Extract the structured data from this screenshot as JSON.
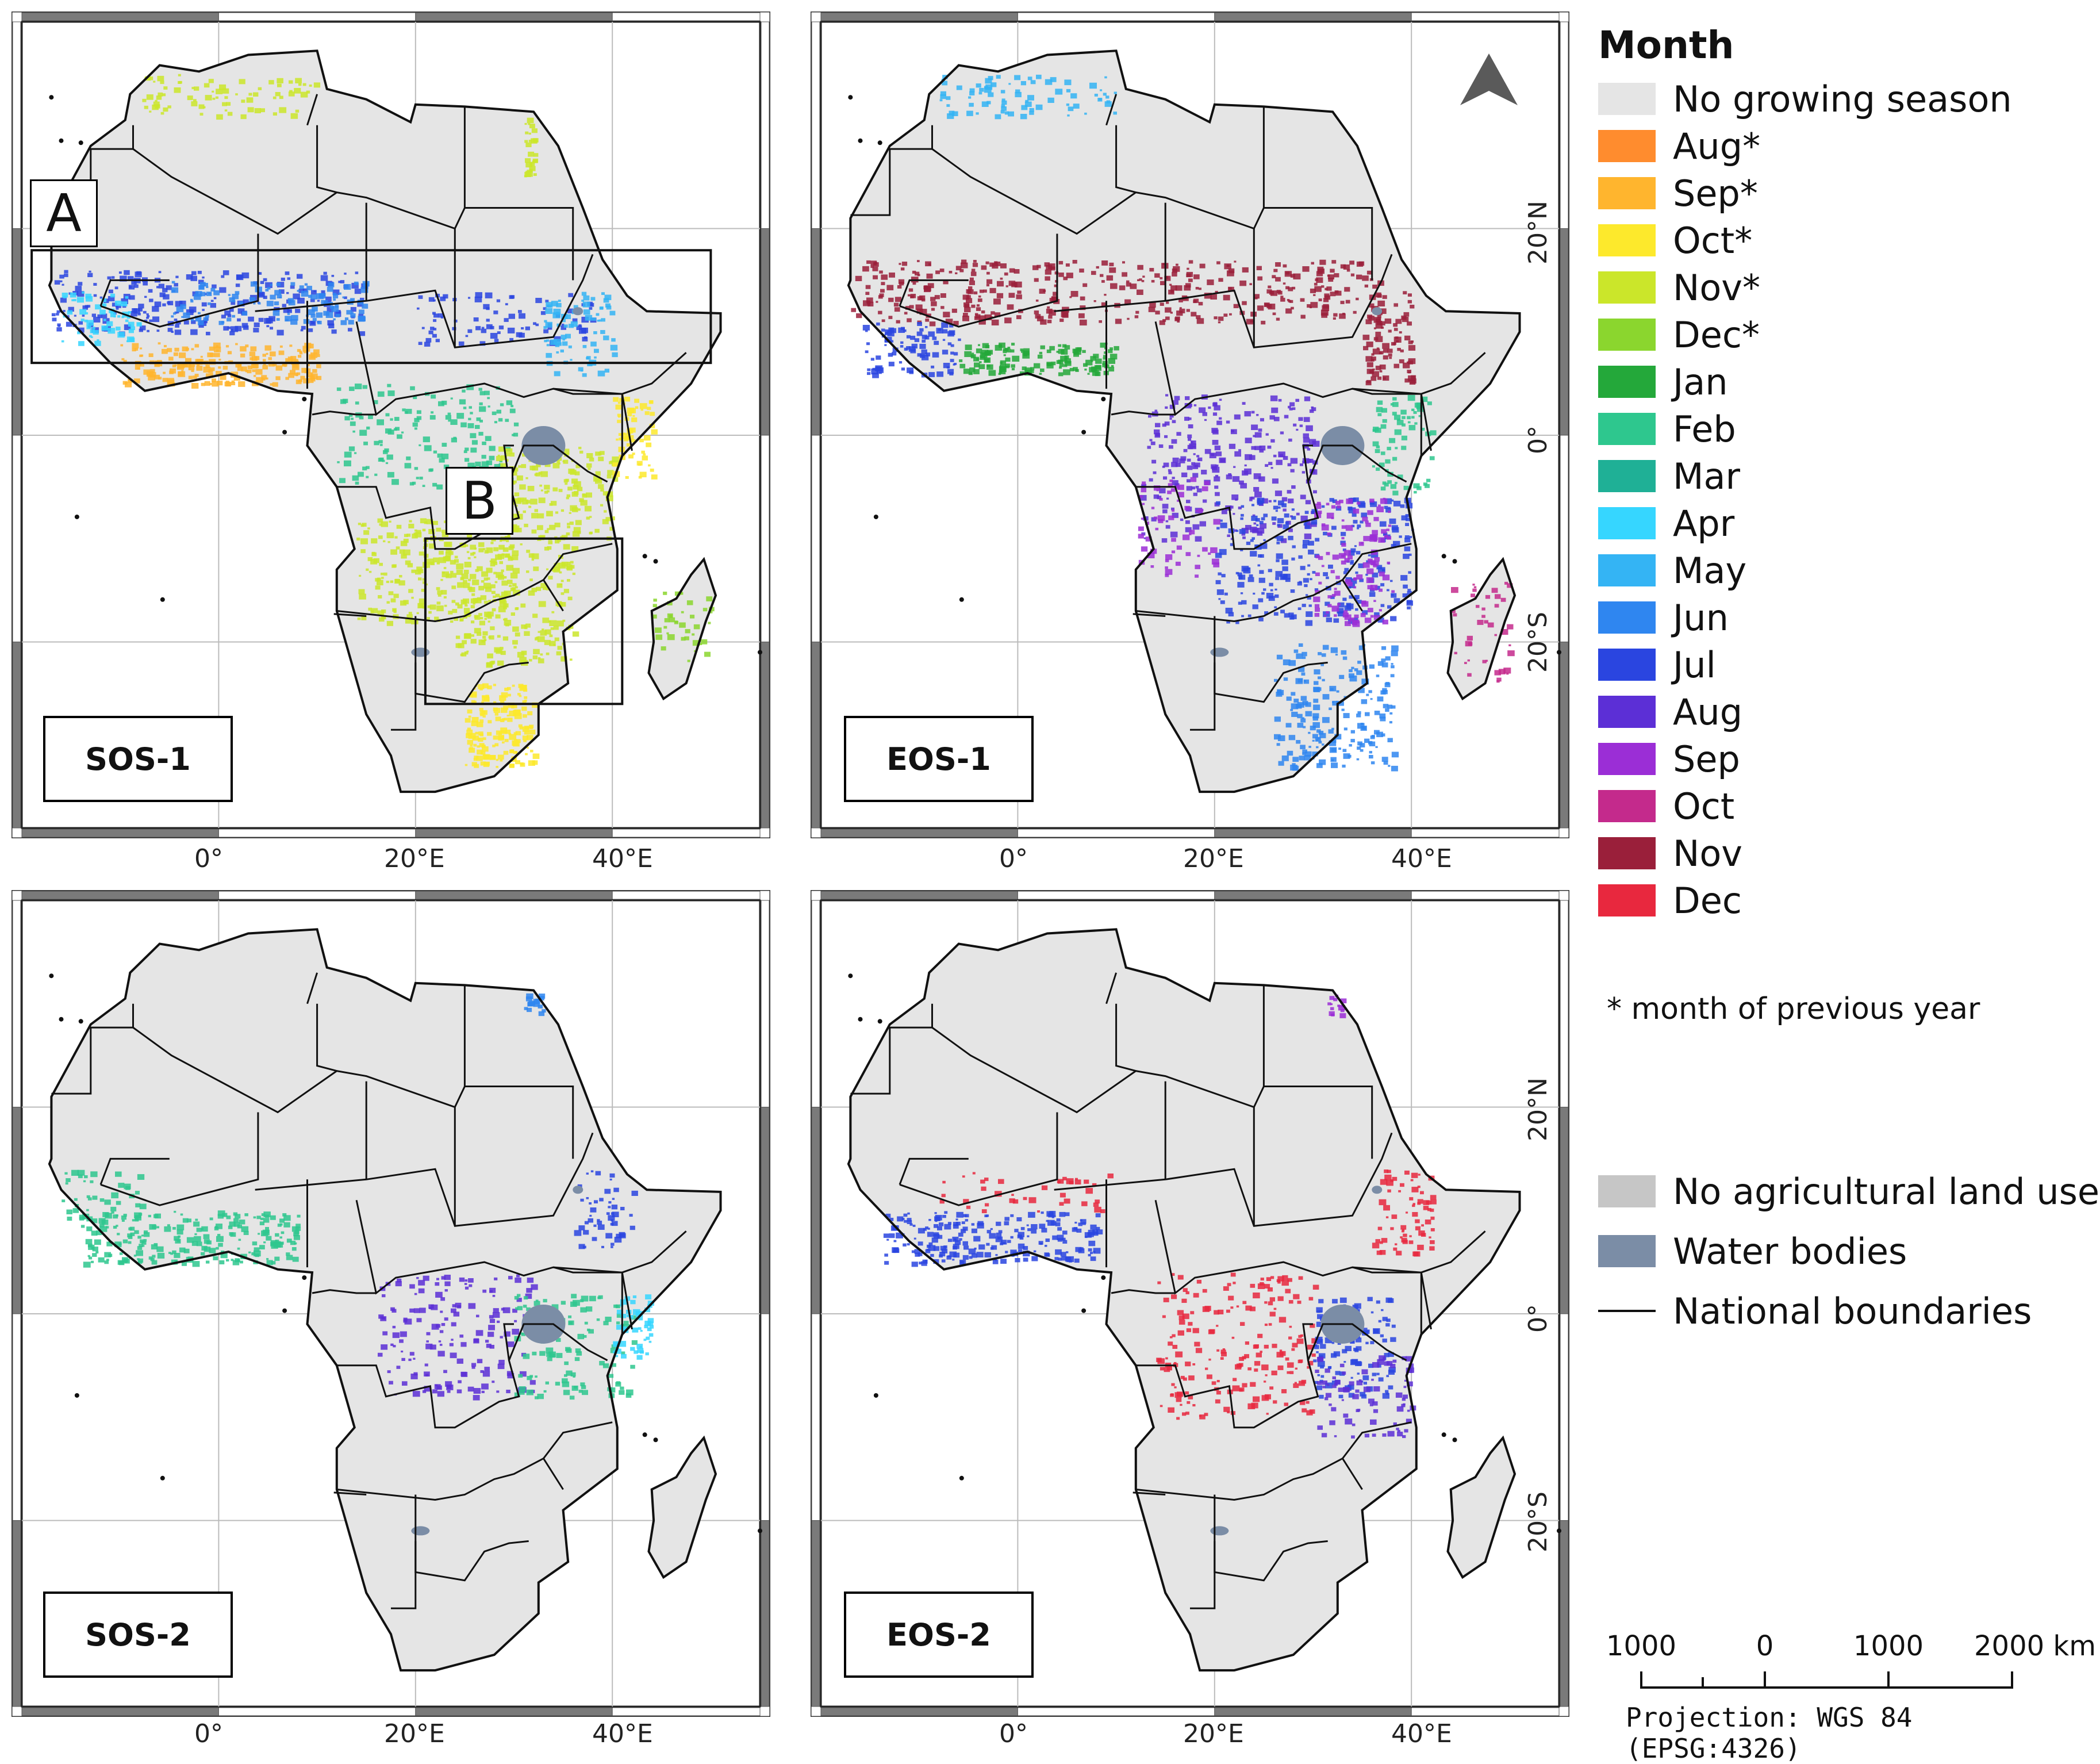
{
  "panels": [
    {
      "id": "sos1",
      "label": "SOS-1"
    },
    {
      "id": "eos1",
      "label": "EOS-1"
    },
    {
      "id": "sos2",
      "label": "SOS-2"
    },
    {
      "id": "eos2",
      "label": "EOS-2"
    }
  ],
  "boxes": {
    "a": "A",
    "b": "B"
  },
  "axis_labels": {
    "lon": [
      "0°",
      "20°E",
      "40°E"
    ],
    "lat": [
      "20°N",
      "0°",
      "20°S"
    ]
  },
  "legend": {
    "title": "Month",
    "items": [
      {
        "label": "No growing season",
        "color": "#e5e5e5"
      },
      {
        "label": "Aug*",
        "color": "#ff8c2e"
      },
      {
        "label": "Sep*",
        "color": "#ffb52e"
      },
      {
        "label": "Oct*",
        "color": "#fde92c"
      },
      {
        "label": "Nov*",
        "color": "#cbe62a"
      },
      {
        "label": "Dec*",
        "color": "#8bd62e"
      },
      {
        "label": "Jan",
        "color": "#24a83a"
      },
      {
        "label": "Feb",
        "color": "#2ec78e"
      },
      {
        "label": "Mar",
        "color": "#1fb096"
      },
      {
        "label": "Apr",
        "color": "#36d6ff"
      },
      {
        "label": "May",
        "color": "#34b4f4"
      },
      {
        "label": "Jun",
        "color": "#2f86f0"
      },
      {
        "label": "Jul",
        "color": "#2a45e0"
      },
      {
        "label": "Aug",
        "color": "#5c2fd6"
      },
      {
        "label": "Sep",
        "color": "#9b2ed6"
      },
      {
        "label": "Oct",
        "color": "#c42a8c"
      },
      {
        "label": "Nov",
        "color": "#9a1f3a"
      },
      {
        "label": "Dec",
        "color": "#e8283e"
      }
    ],
    "footnote": "* month of previous year",
    "extra": [
      {
        "label": "No agricultural land use",
        "color": "#c6c6c6"
      },
      {
        "label": "Water bodies",
        "color": "#7b8da6"
      },
      {
        "label": "National boundaries",
        "type": "line"
      }
    ]
  },
  "scalebar": {
    "labels": [
      "1000",
      "0",
      "1000",
      "2000 km"
    ]
  },
  "projection": "Projection: WGS 84 (EPSG:4326)",
  "map_bounds": {
    "lon": [
      -20,
      55
    ],
    "lat": [
      -38,
      40
    ]
  },
  "graticule": {
    "lon": [
      0,
      20,
      40
    ],
    "lat": [
      -20,
      0,
      20
    ]
  },
  "africa_outline_lonlat": [
    [
      -17,
      15
    ],
    [
      -17,
      21
    ],
    [
      -13,
      28
    ],
    [
      -9.5,
      30.5
    ],
    [
      -9,
      33
    ],
    [
      -6,
      35.8
    ],
    [
      -2,
      35.2
    ],
    [
      3,
      36.8
    ],
    [
      10,
      37.2
    ],
    [
      11,
      33.5
    ],
    [
      15,
      32.5
    ],
    [
      19.5,
      30.3
    ],
    [
      20,
      32
    ],
    [
      25,
      31.8
    ],
    [
      32,
      31.3
    ],
    [
      34.5,
      28
    ],
    [
      37,
      22
    ],
    [
      39,
      17
    ],
    [
      41.5,
      13.5
    ],
    [
      43.5,
      12
    ],
    [
      51,
      11.8
    ],
    [
      51,
      10
    ],
    [
      48,
      5
    ],
    [
      44,
      1
    ],
    [
      41,
      -2
    ],
    [
      39.5,
      -6
    ],
    [
      40.5,
      -11
    ],
    [
      40.5,
      -15
    ],
    [
      35,
      -19
    ],
    [
      35.5,
      -24
    ],
    [
      32.5,
      -26
    ],
    [
      32.5,
      -29
    ],
    [
      28,
      -33
    ],
    [
      22,
      -34.5
    ],
    [
      18.5,
      -34.5
    ],
    [
      17.5,
      -31
    ],
    [
      15,
      -27
    ],
    [
      12,
      -17
    ],
    [
      12,
      -13
    ],
    [
      13.8,
      -11
    ],
    [
      12,
      -5
    ],
    [
      9,
      -1
    ],
    [
      9.5,
      4
    ],
    [
      6,
      4.3
    ],
    [
      1,
      6
    ],
    [
      -4,
      5
    ],
    [
      -7.5,
      4.3
    ],
    [
      -11,
      7
    ],
    [
      -13,
      9
    ],
    [
      -16,
      12
    ],
    [
      -17.2,
      14.5
    ]
  ],
  "madagascar_lonlat": [
    [
      49.3,
      -12
    ],
    [
      50.5,
      -15.5
    ],
    [
      49.5,
      -18
    ],
    [
      48.5,
      -21
    ],
    [
      47.5,
      -24
    ],
    [
      45.2,
      -25.5
    ],
    [
      43.7,
      -23
    ],
    [
      44.2,
      -20
    ],
    [
      44,
      -17
    ],
    [
      46.5,
      -15.8
    ],
    [
      48,
      -13.5
    ]
  ]
}
